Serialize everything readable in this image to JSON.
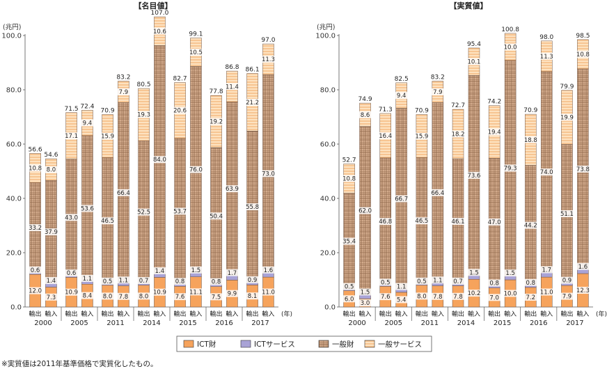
{
  "colors": {
    "ict_goods": "#f6a35c",
    "ict_services": "#a9a3d6",
    "general_goods": "#d8b193",
    "general_services": "#fbd3a6"
  },
  "legend": [
    "ICT財",
    "ICTサービス",
    "一般財",
    "一般サービス"
  ],
  "footnote": "※実質値は2011年基準価格で実質化したもの。",
  "chart_data": [
    {
      "type": "bar",
      "stacked": true,
      "title": "【名目値】",
      "unit": "(兆円)",
      "x_unit": "(年)",
      "ylim": [
        0,
        100
      ],
      "yticks": [
        "0.0",
        "20.0",
        "40.0",
        "60.0",
        "80.0",
        "100.0"
      ],
      "grid": false,
      "years": [
        "2000",
        "2005",
        "2011",
        "2014",
        "2015",
        "2016",
        "2017"
      ],
      "sub_categories": [
        "輸出",
        "輸入"
      ],
      "series_names": [
        "ICT財",
        "ICTサービス",
        "一般財",
        "一般サービス"
      ],
      "bars": [
        {
          "values": [
            12.0,
            0.6,
            33.2,
            10.8
          ],
          "labels": [
            "12.0",
            "0.6",
            "33.2",
            "10.8"
          ],
          "total": "56.6"
        },
        {
          "values": [
            7.3,
            1.4,
            37.9,
            8.0
          ],
          "labels": [
            "7.3",
            "1.4",
            "37.9",
            "8.0"
          ],
          "total": "54.6"
        },
        {
          "values": [
            10.9,
            0.6,
            43.0,
            17.1
          ],
          "labels": [
            "10.9",
            "0.6",
            "43.0",
            "17.1"
          ],
          "total": "71.5"
        },
        {
          "values": [
            8.4,
            1.1,
            53.6,
            9.4
          ],
          "labels": [
            "8.4",
            "1.1",
            "53.6",
            "9.4"
          ],
          "total": "72.4"
        },
        {
          "values": [
            8.0,
            0.5,
            46.5,
            15.9
          ],
          "labels": [
            "8.0",
            "0.5",
            "46.5",
            "15.9"
          ],
          "total": "70.9"
        },
        {
          "values": [
            7.8,
            1.1,
            66.4,
            7.9
          ],
          "labels": [
            "7.8",
            "1.1",
            "66.4",
            "7.9"
          ],
          "total": "83.2"
        },
        {
          "values": [
            8.0,
            0.7,
            52.5,
            19.3
          ],
          "labels": [
            "8.0",
            "0.7",
            "52.5",
            "19.3"
          ],
          "total": "80.5"
        },
        {
          "values": [
            10.9,
            1.4,
            84.0,
            10.6
          ],
          "labels": [
            "10.9",
            "1.4",
            "84.0",
            "10.6"
          ],
          "total": "107.0"
        },
        {
          "values": [
            7.6,
            0.8,
            53.7,
            20.6
          ],
          "labels": [
            "7.6",
            "0.8",
            "53.7",
            "20.6"
          ],
          "total": "82.7"
        },
        {
          "values": [
            11.1,
            1.5,
            76.0,
            10.5
          ],
          "labels": [
            "11.1",
            "1.5",
            "76.0",
            "10.5"
          ],
          "total": "99.1"
        },
        {
          "values": [
            7.5,
            0.8,
            50.4,
            19.2
          ],
          "labels": [
            "7.5",
            "0.8",
            "50.4",
            "19.2"
          ],
          "total": "77.8"
        },
        {
          "values": [
            9.9,
            1.7,
            63.9,
            11.4
          ],
          "labels": [
            "9.9",
            "1.7",
            "63.9",
            "11.4"
          ],
          "total": "86.8"
        },
        {
          "values": [
            8.1,
            0.9,
            55.8,
            21.2
          ],
          "labels": [
            "8.1",
            "0.9",
            "55.8",
            "21.2"
          ],
          "total": "86.1"
        },
        {
          "values": [
            11.0,
            1.6,
            73.0,
            11.3
          ],
          "labels": [
            "11.0",
            "1.6",
            "73.0",
            "11.3"
          ],
          "total": "97.0"
        }
      ]
    },
    {
      "type": "bar",
      "stacked": true,
      "title": "【実質値】",
      "unit": "(兆円)",
      "x_unit": "(年)",
      "ylim": [
        0,
        100
      ],
      "yticks": [
        "0.0",
        "20.0",
        "40.0",
        "60.0",
        "80.0",
        "100.0"
      ],
      "grid": false,
      "years": [
        "2000",
        "2005",
        "2011",
        "2014",
        "2015",
        "2016",
        "2017"
      ],
      "sub_categories": [
        "輸出",
        "輸入"
      ],
      "series_names": [
        "ICT財",
        "ICTサービス",
        "一般財",
        "一般サービス"
      ],
      "bars": [
        {
          "values": [
            6.0,
            0.5,
            35.4,
            10.8
          ],
          "labels": [
            "6.0",
            "0.5",
            "35.4",
            "10.8"
          ],
          "total": "52.7"
        },
        {
          "values": [
            3.0,
            1.5,
            62.0,
            8.6
          ],
          "labels": [
            "3.0",
            "1.5",
            "62.0",
            "8.6"
          ],
          "total": "74.9"
        },
        {
          "values": [
            7.6,
            0.5,
            46.8,
            16.4
          ],
          "labels": [
            "7.6",
            "0.5",
            "46.8",
            "16.4"
          ],
          "total": "71.3"
        },
        {
          "values": [
            5.4,
            1.1,
            66.7,
            9.4
          ],
          "labels": [
            "5.4",
            "1.1",
            "66.7",
            "9.4"
          ],
          "total": "82.5"
        },
        {
          "values": [
            8.0,
            0.5,
            46.5,
            15.9
          ],
          "labels": [
            "8.0",
            "0.5",
            "46.5",
            "15.9"
          ],
          "total": "70.9"
        },
        {
          "values": [
            7.8,
            1.1,
            66.4,
            7.9
          ],
          "labels": [
            "7.8",
            "1.1",
            "66.4",
            "7.9"
          ],
          "total": "83.2"
        },
        {
          "values": [
            7.8,
            0.7,
            46.1,
            18.2
          ],
          "labels": [
            "7.8",
            "0.7",
            "46.1",
            "18.2"
          ],
          "total": "72.7"
        },
        {
          "values": [
            10.2,
            1.5,
            73.6,
            10.1
          ],
          "labels": [
            "10.2",
            "1.5",
            "73.6",
            "10.1"
          ],
          "total": "95.4"
        },
        {
          "values": [
            7.0,
            0.8,
            47.0,
            19.4
          ],
          "labels": [
            "7.0",
            "0.8",
            "47.0",
            "19.4"
          ],
          "total": "74.2"
        },
        {
          "values": [
            10.0,
            1.5,
            79.3,
            10.0
          ],
          "labels": [
            "10.0",
            "1.5",
            "79.3",
            "10.0"
          ],
          "total": "100.8"
        },
        {
          "values": [
            7.2,
            0.8,
            44.2,
            18.8
          ],
          "labels": [
            "7.2",
            "0.8",
            "44.2",
            "18.8"
          ],
          "total": "70.9"
        },
        {
          "values": [
            11.0,
            1.7,
            74.0,
            11.3
          ],
          "labels": [
            "11.0",
            "1.7",
            "74.0",
            "11.3"
          ],
          "total": "98.0"
        },
        {
          "values": [
            7.9,
            0.9,
            51.1,
            19.9
          ],
          "labels": [
            "7.9",
            "0.9",
            "51.1",
            "19.9"
          ],
          "total": "79.9"
        },
        {
          "values": [
            12.3,
            1.6,
            73.8,
            10.8
          ],
          "labels": [
            "12.3",
            "1.6",
            "73.8",
            "10.8"
          ],
          "total": "98.5"
        }
      ]
    }
  ]
}
